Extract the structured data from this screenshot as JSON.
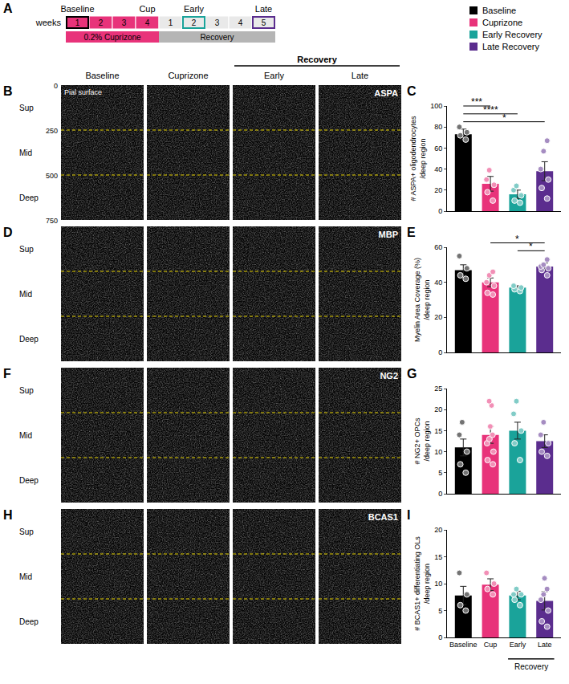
{
  "figure": {
    "timeline": {
      "letter": "A",
      "axis_label": "weeks",
      "phases": [
        {
          "label": "0.2% Cuprizone",
          "weeks": [
            "1",
            "2",
            "3",
            "4"
          ],
          "color": "#e8337a"
        },
        {
          "label": "Recovery",
          "weeks": [
            "1",
            "2",
            "3",
            "4",
            "5"
          ],
          "color": "#b5b5b5"
        }
      ],
      "time_points": [
        {
          "label": "Baseline",
          "phase": "0.2% Cuprizone",
          "week": "1",
          "color": "#000000"
        },
        {
          "label": "Cup",
          "phase": "0.2% Cuprizone",
          "week": "4"
        },
        {
          "label": "Early",
          "phase": "Recovery",
          "week": "2",
          "color": "#1aa39a"
        },
        {
          "label": "Late",
          "phase": "Recovery",
          "week": "5",
          "color": "#5b2d8e"
        }
      ]
    },
    "legend": [
      {
        "name": "Baseline",
        "color": "#000000"
      },
      {
        "name": "Cuprizone",
        "color": "#e8337a"
      },
      {
        "name": "Early Recovery",
        "color": "#1aa39a"
      },
      {
        "name": "Late Recovery",
        "color": "#5b2d8e"
      }
    ],
    "images": {
      "columns": [
        "Baseline",
        "Cuprizone",
        "Early",
        "Late"
      ],
      "column_group": {
        "label": "Recovery",
        "columns": [
          "Early",
          "Late"
        ]
      },
      "regions": [
        "Sup",
        "Mid",
        "Deep"
      ],
      "depth_ticks": [
        0,
        250,
        500,
        750
      ],
      "surface_label": "Pial surface",
      "rows": [
        {
          "letter": "B",
          "stain": "ASPA"
        },
        {
          "letter": "D",
          "stain": "MBP"
        },
        {
          "letter": "F",
          "stain": "NG2"
        },
        {
          "letter": "H",
          "stain": "BCAS1"
        }
      ]
    }
  },
  "chart_data": [
    {
      "panel": "C",
      "type": "bar",
      "ylabel": [
        "# ASPA+ oligodendrocytes",
        "/deep region"
      ],
      "categories": [
        null,
        null,
        null,
        null
      ],
      "values": [
        73,
        26,
        16,
        38
      ],
      "errors": [
        5,
        7,
        4,
        9
      ],
      "colors": [
        "#000000",
        "#e8337a",
        "#1aa39a",
        "#5b2d8e"
      ],
      "points": [
        [
          80,
          72,
          68,
          75
        ],
        [
          39,
          30,
          25,
          18,
          10
        ],
        [
          24,
          20,
          15,
          10,
          8
        ],
        [
          67,
          57,
          40,
          30,
          22,
          12
        ]
      ],
      "significance": [
        {
          "from": 0,
          "to": 3,
          "label": "*"
        },
        {
          "from": 0,
          "to": 2,
          "label": "****"
        },
        {
          "from": 0,
          "to": 1,
          "label": "***"
        }
      ],
      "ylim": [
        0,
        100
      ],
      "yticks": [
        0,
        20,
        40,
        60,
        80,
        100
      ],
      "tick_labels": "y"
    },
    {
      "panel": "E",
      "type": "bar",
      "ylabel": [
        "Myelin Area Coverage (%)",
        "/deep region"
      ],
      "categories": [
        null,
        null,
        null,
        null
      ],
      "values": [
        47,
        40,
        37,
        49
      ],
      "errors": [
        3,
        2.5,
        1,
        2
      ],
      "colors": [
        "#000000",
        "#e8337a",
        "#1aa39a",
        "#5b2d8e"
      ],
      "points": [
        [
          55,
          48,
          44,
          42
        ],
        [
          46,
          44,
          40,
          38,
          34,
          33
        ],
        [
          38,
          37,
          36,
          35
        ],
        [
          53,
          50,
          49,
          48,
          47,
          44
        ]
      ],
      "significance": [
        {
          "from": 2,
          "to": 3,
          "label": "*"
        },
        {
          "from": 1,
          "to": 3,
          "label": "*"
        }
      ],
      "ylim": [
        0,
        60
      ],
      "yticks": [
        0,
        20,
        40,
        60
      ],
      "tick_labels": "y"
    },
    {
      "panel": "G",
      "type": "bar",
      "ylabel": [
        "# NG2+ OPCs",
        "/deep region"
      ],
      "categories": [
        null,
        null,
        null,
        null
      ],
      "values": [
        11,
        14,
        15,
        12.5
      ],
      "errors": [
        2,
        2,
        2,
        1.5
      ],
      "colors": [
        "#000000",
        "#e8337a",
        "#1aa39a",
        "#5b2d8e"
      ],
      "points": [
        [
          17,
          14,
          10,
          7,
          5
        ],
        [
          22,
          21,
          16,
          14,
          13,
          12,
          10,
          8,
          7
        ],
        [
          22,
          19,
          15,
          12,
          8
        ],
        [
          17,
          14,
          12,
          10,
          9
        ]
      ],
      "ylim": [
        0,
        25
      ],
      "yticks": [
        0,
        5,
        10,
        15,
        20,
        25
      ],
      "tick_labels": "y"
    },
    {
      "panel": "I",
      "type": "bar",
      "ylabel": [
        "# BCAS1+ differentiating OLs",
        "/deep region"
      ],
      "categories": [
        "Baseline",
        "Cup",
        "Early",
        "Late"
      ],
      "category_group": {
        "label": "Recovery",
        "categories": [
          "Early",
          "Late"
        ]
      },
      "values": [
        7.8,
        9.8,
        7.8,
        6.8
      ],
      "errors": [
        1.7,
        1.1,
        0.8,
        1.7
      ],
      "colors": [
        "#000000",
        "#e8337a",
        "#1aa39a",
        "#5b2d8e"
      ],
      "points": [
        [
          12,
          8,
          6,
          5
        ],
        [
          12,
          10,
          9,
          8
        ],
        [
          9,
          8,
          8,
          7,
          6
        ],
        [
          11,
          9,
          8,
          7,
          5,
          3,
          2
        ]
      ],
      "ylim": [
        0,
        20
      ],
      "yticks": [
        0,
        5,
        10,
        15,
        20
      ],
      "tick_labels": true
    }
  ]
}
